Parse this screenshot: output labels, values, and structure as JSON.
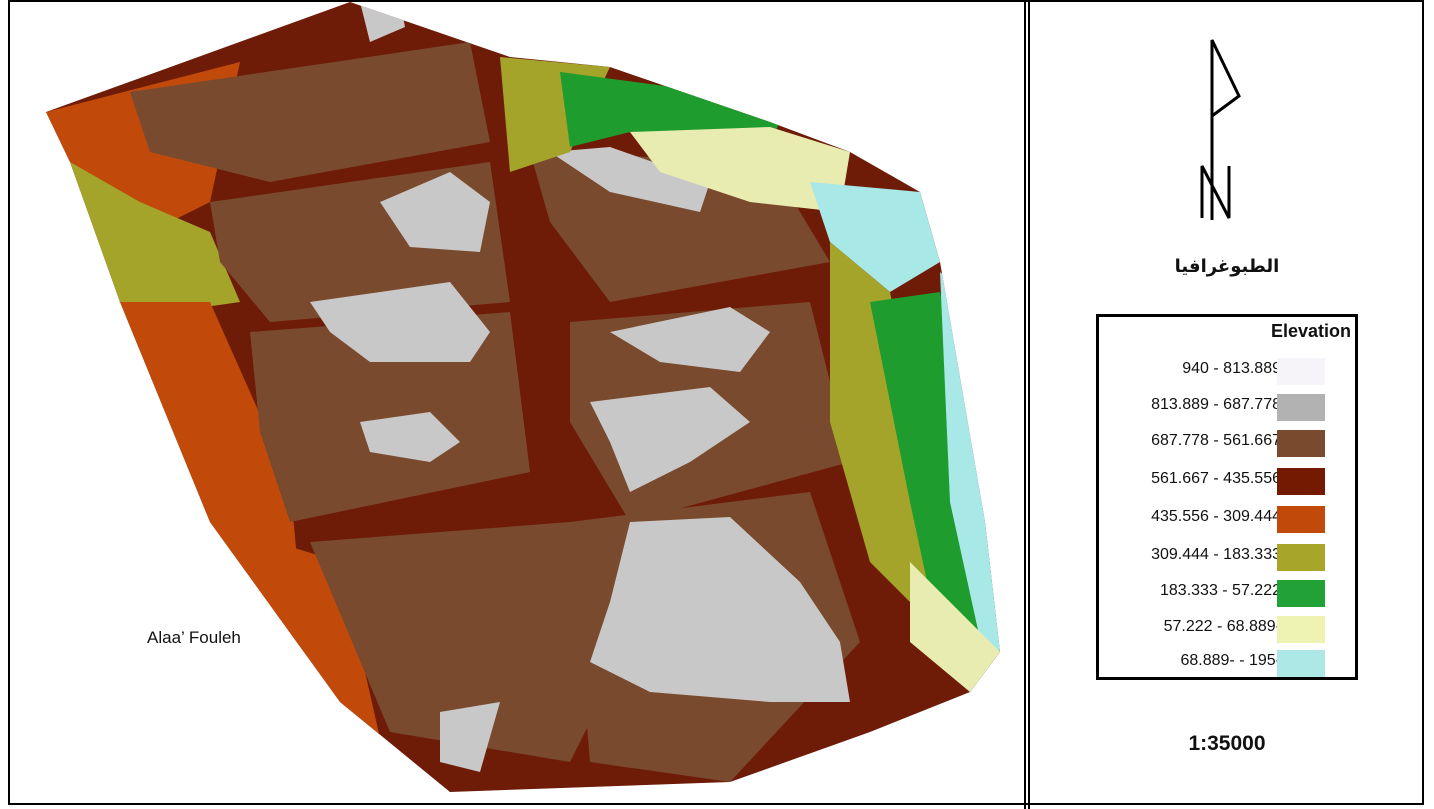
{
  "map": {
    "author": "Alaa’ Fouleh",
    "relief_colors": {
      "grey": "#c8c8c8",
      "light_brown": "#7a4a2e",
      "dark_brown": "#6e1c08",
      "orange": "#c14a0a",
      "olive": "#a4a32a",
      "green": "#1f9c2e",
      "pale_yellow": "#e8ecb0",
      "cyan": "#a8e8e6"
    }
  },
  "panel": {
    "north_arrow_icon": "north-arrow-icon",
    "title": "الطبوغرافيا",
    "legend": {
      "title": "Elevation",
      "items": [
        {
          "label": "940 - 813.889",
          "color": "#f6f4f8"
        },
        {
          "label": "813.889 - 687.778",
          "color": "#b2b2b2"
        },
        {
          "label": "687.778 - 561.667",
          "color": "#7a4a2e"
        },
        {
          "label": "561.667 - 435.556",
          "color": "#741a02"
        },
        {
          "label": "435.556 - 309.444",
          "color": "#c14a0a"
        },
        {
          "label": "309.444 - 183.333",
          "color": "#a8a62a"
        },
        {
          "label": "183.333 - 57.222",
          "color": "#22a236"
        },
        {
          "label": "57.222 - 68.889-",
          "color": "#eef3b2"
        },
        {
          "label": "68.889- - 195-",
          "color": "#aee8e6"
        }
      ]
    },
    "scale": "1:35000"
  }
}
